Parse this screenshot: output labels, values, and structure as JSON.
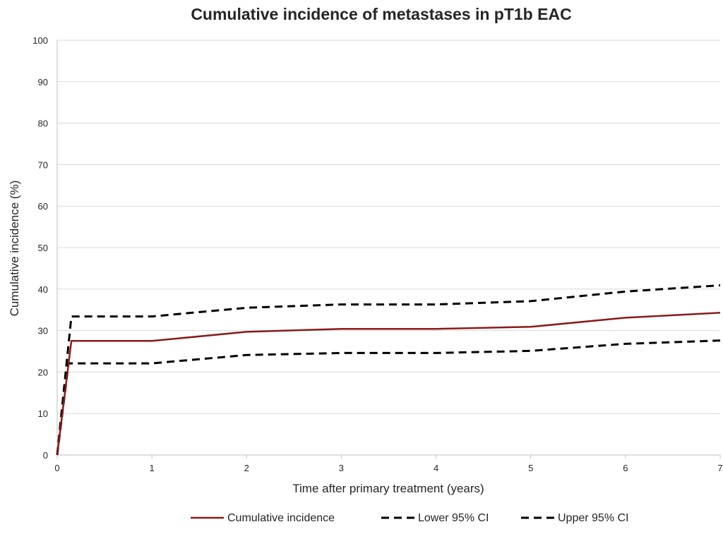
{
  "chart_data": {
    "type": "line",
    "title": "Cumulative incidence of metastases in pT1b EAC",
    "xlabel": "Time after primary treatment (years)",
    "ylabel": "Cumulative incidence (%)",
    "xlim": [
      0,
      7
    ],
    "ylim": [
      0,
      100
    ],
    "xticks": [
      "0",
      "1",
      "2",
      "3",
      "4",
      "5",
      "6",
      "7"
    ],
    "yticks": [
      "0",
      "10",
      "20",
      "30",
      "40",
      "50",
      "60",
      "70",
      "80",
      "90",
      "100"
    ],
    "grid": "horizontal",
    "legend_position": "bottom",
    "series": [
      {
        "name": "Cumulative incidence",
        "color": "#8b1a1a",
        "style": "solid",
        "points": [
          [
            0,
            0
          ],
          [
            0.15,
            27.5
          ],
          [
            1,
            27.5
          ],
          [
            2,
            29.7
          ],
          [
            3,
            30.4
          ],
          [
            4,
            30.4
          ],
          [
            5,
            30.9
          ],
          [
            6,
            33.1
          ],
          [
            7,
            34.3
          ]
        ]
      },
      {
        "name": "Lower 95% CI",
        "color": "#000000",
        "style": "dashed",
        "points": [
          [
            0,
            0
          ],
          [
            0.12,
            22.1
          ],
          [
            1,
            22.1
          ],
          [
            2,
            24.1
          ],
          [
            3,
            24.6
          ],
          [
            4,
            24.6
          ],
          [
            5,
            25.1
          ],
          [
            6,
            26.8
          ],
          [
            7,
            27.6
          ]
        ]
      },
      {
        "name": "Upper 95% CI",
        "color": "#000000",
        "style": "dashed",
        "points": [
          [
            0,
            0
          ],
          [
            0.15,
            33.4
          ],
          [
            1,
            33.4
          ],
          [
            2,
            35.5
          ],
          [
            3,
            36.3
          ],
          [
            4,
            36.3
          ],
          [
            5,
            37.1
          ],
          [
            6,
            39.4
          ],
          [
            7,
            40.9
          ]
        ]
      }
    ]
  }
}
